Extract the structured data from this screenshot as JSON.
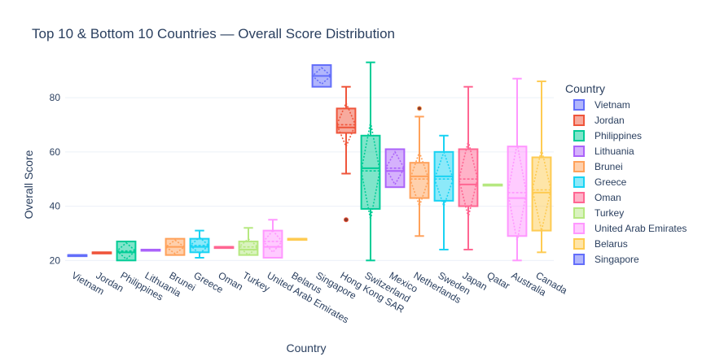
{
  "chart_data": {
    "type": "box",
    "title": "Top 10 & Bottom 10 Countries — Overall Score Distribution",
    "xlabel": "Country",
    "ylabel": "Overall Score",
    "ylim": [
      18,
      98
    ],
    "yticks": [
      20,
      40,
      60,
      80
    ],
    "grid": true,
    "legend": {
      "title": "Country",
      "placement": "right"
    },
    "categories": [
      "Vietnam",
      "Jordan",
      "Philippines",
      "Lithuania",
      "Brunei",
      "Greece",
      "Oman",
      "Turkey",
      "United Arab Emirates",
      "Belarus",
      "Singapore",
      "Hong Kong SAR",
      "Switzerland",
      "Mexico",
      "Netherlands",
      "Sweden",
      "Japan",
      "Qatar",
      "Australia",
      "Canada"
    ],
    "legend_entries": [
      "Vietnam",
      "Jordan",
      "Philippines",
      "Lithuania",
      "Brunei",
      "Greece",
      "Oman",
      "Turkey",
      "United Arab Emirates",
      "Belarus",
      "Singapore"
    ],
    "series": [
      {
        "name": "Vietnam",
        "color": "#636efa",
        "min": 22,
        "q1": 22,
        "median": 22,
        "q3": 22,
        "max": 22,
        "mean": 22,
        "sd": 0
      },
      {
        "name": "Jordan",
        "color": "#ef553b",
        "min": 23,
        "q1": 23,
        "median": 23,
        "q3": 23,
        "max": 23,
        "mean": 23,
        "sd": 0
      },
      {
        "name": "Philippines",
        "color": "#00cc96",
        "min": 20,
        "q1": 20,
        "median": 23,
        "q3": 27,
        "max": 27,
        "mean": 23.5,
        "sd": 3
      },
      {
        "name": "Lithuania",
        "color": "#ab63fa",
        "min": 24,
        "q1": 24,
        "median": 24,
        "q3": 24,
        "max": 24,
        "mean": 24,
        "sd": 0
      },
      {
        "name": "Brunei",
        "color": "#ffa15a",
        "min": 22,
        "q1": 22,
        "median": 25,
        "q3": 28,
        "max": 28,
        "mean": 25,
        "sd": 2.5
      },
      {
        "name": "Greece",
        "color": "#19d3f3",
        "min": 21,
        "q1": 23,
        "median": 25,
        "q3": 28,
        "max": 31,
        "mean": 25.5,
        "sd": 3
      },
      {
        "name": "Oman",
        "color": "#ff6692",
        "min": 25,
        "q1": 25,
        "median": 25,
        "q3": 25,
        "max": 25,
        "mean": 25,
        "sd": 0
      },
      {
        "name": "Turkey",
        "color": "#b6e880",
        "min": 22,
        "q1": 22,
        "median": 24,
        "q3": 27,
        "max": 32,
        "mean": 25,
        "sd": 3
      },
      {
        "name": "United Arab Emirates",
        "color": "#ff97ff",
        "min": 21,
        "q1": 21,
        "median": 25,
        "q3": 31,
        "max": 35,
        "mean": 27,
        "sd": 4
      },
      {
        "name": "Belarus",
        "color": "#fecb52",
        "min": 28,
        "q1": 28,
        "median": 28,
        "q3": 28,
        "max": 28,
        "mean": 28,
        "sd": 0
      },
      {
        "name": "Singapore",
        "color": "#636efa",
        "min": 84,
        "q1": 84,
        "median": 88,
        "q3": 92,
        "max": 92,
        "mean": 88,
        "sd": 3
      },
      {
        "name": "Hong Kong SAR",
        "color": "#ef553b",
        "min": 52,
        "q1": 67,
        "median": 69,
        "q3": 76,
        "max": 84,
        "mean": 70,
        "sd": 8,
        "outliers": [
          35
        ]
      },
      {
        "name": "Switzerland",
        "color": "#00cc96",
        "min": 20,
        "q1": 39,
        "median": 54,
        "q3": 66,
        "max": 93,
        "mean": 53,
        "sd": 18
      },
      {
        "name": "Mexico",
        "color": "#ab63fa",
        "min": 47,
        "q1": 47,
        "median": 53,
        "q3": 61,
        "max": 61,
        "mean": 54,
        "sd": 6
      },
      {
        "name": "Netherlands",
        "color": "#ffa15a",
        "min": 29,
        "q1": 43,
        "median": 51,
        "q3": 56,
        "max": 73,
        "mean": 50,
        "sd": 10,
        "outliers": [
          76
        ]
      },
      {
        "name": "Sweden",
        "color": "#19d3f3",
        "min": 24,
        "q1": 42,
        "median": 51,
        "q3": 60,
        "max": 66,
        "mean": 50,
        "sd": 10
      },
      {
        "name": "Japan",
        "color": "#ff6692",
        "min": 24,
        "q1": 40,
        "median": 48,
        "q3": 61,
        "max": 84,
        "mean": 50,
        "sd": 14
      },
      {
        "name": "Qatar",
        "color": "#b6e880",
        "min": 48,
        "q1": 48,
        "median": 48,
        "q3": 48,
        "max": 48,
        "mean": 48,
        "sd": 0
      },
      {
        "name": "Australia",
        "color": "#ff97ff",
        "min": 20,
        "q1": 29,
        "median": 43,
        "q3": 62,
        "max": 87,
        "mean": 45,
        "sd": 18
      },
      {
        "name": "Canada",
        "color": "#fecb52",
        "min": 23,
        "q1": 31,
        "median": 45,
        "q3": 58,
        "max": 86,
        "mean": 46,
        "sd": 15
      }
    ]
  }
}
